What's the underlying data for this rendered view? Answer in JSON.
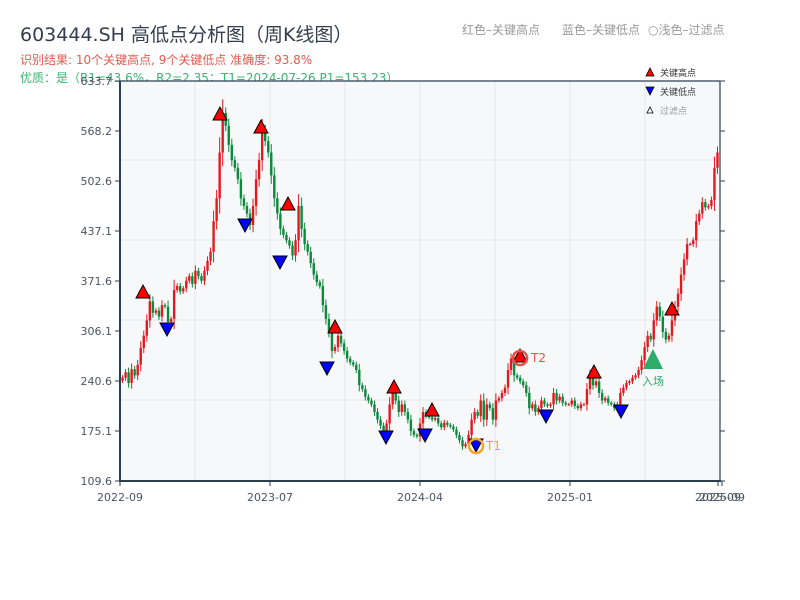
{
  "header": {
    "title": "603444.SH 高低点分析图（周K线图）",
    "result_line": "识别结果: 10个关键高点, 9个关键低点   准确度: 93.8%",
    "quality_line": "优质：是（R1=43.6%，R2=2.35；T1=2024-07-26 P1=153.23）",
    "top_legend": [
      "红色–关键高点",
      "蓝色–关键低点",
      "○浅色–过滤点"
    ]
  },
  "legend": {
    "items": [
      {
        "label": "关键高点",
        "marker": "triangle-up",
        "color": "#ff0000"
      },
      {
        "label": "关键低点",
        "marker": "triangle-down",
        "color": "#0000ff"
      },
      {
        "label": "过滤点",
        "marker": "triangle-up-outline",
        "color": "#ffcccc"
      }
    ]
  },
  "colors": {
    "up": "#e31a1c",
    "down": "#0a8a3a",
    "high_marker": "#ff0000",
    "low_marker": "#0000ff",
    "t1": "#f5a623",
    "t2": "#e8524a",
    "entry": "#2eaa6a",
    "axis": "#2c3e50",
    "grid": "#e3e6ea",
    "plot_bg": "#f7f8fa"
  },
  "annotations": {
    "t1_label": "T1",
    "t2_label": "T2",
    "entry_label": "入场"
  },
  "chart_data": {
    "type": "candlestick",
    "title": "603444.SH 高低点分析图（周K线图）",
    "xlabel": "",
    "ylabel": "",
    "ylim": [
      109.6,
      633.7
    ],
    "yticks": [
      "109.6",
      "175.1",
      "240.6",
      "306.1",
      "371.6",
      "437.1",
      "502.6",
      "568.2",
      "633.7"
    ],
    "xticks": [
      "2022-09",
      "2023-07",
      "2024-04",
      "2025-01",
      "2025-09",
      "2025-09"
    ],
    "grid": true,
    "legend_position": "upper right",
    "key_highs": [
      {
        "approx_date": "2022-11",
        "price": 352
      },
      {
        "approx_date": "2023-03",
        "price": 592
      },
      {
        "approx_date": "2023-05",
        "price": 566
      },
      {
        "approx_date": "2023-08",
        "price": 474
      },
      {
        "approx_date": "2023-11",
        "price": 303
      },
      {
        "approx_date": "2024-02",
        "price": 224
      },
      {
        "approx_date": "2024-05",
        "price": 201
      },
      {
        "approx_date": "2024-10",
        "price": 267
      },
      {
        "approx_date": "2025-03",
        "price": 254
      },
      {
        "approx_date": "2025-06",
        "price": 338
      }
    ],
    "key_lows": [
      {
        "approx_date": "2022-12",
        "price": 305
      },
      {
        "approx_date": "2023-04",
        "price": 448
      },
      {
        "approx_date": "2023-07",
        "price": 396
      },
      {
        "approx_date": "2023-10",
        "price": 256
      },
      {
        "approx_date": "2024-02",
        "price": 163
      },
      {
        "approx_date": "2024-04",
        "price": 165
      },
      {
        "approx_date": "2024-07-26",
        "price": 153.23
      },
      {
        "approx_date": "2024-12",
        "price": 188
      },
      {
        "approx_date": "2025-04",
        "price": 199
      }
    ],
    "T1": {
      "date": "2024-07-26",
      "price": 153.23
    },
    "T2": {
      "approx_date": "2024-10",
      "price": 267
    },
    "entry": {
      "approx_date": "2025-05",
      "price": 262
    },
    "weekly_close_approx": [
      245,
      252,
      238,
      256,
      248,
      262,
      284,
      300,
      320,
      345,
      330,
      333,
      325,
      340,
      338,
      318,
      322,
      360,
      365,
      358,
      362,
      372,
      378,
      368,
      385,
      378,
      372,
      385,
      398,
      410,
      450,
      480,
      540,
      592,
      575,
      550,
      530,
      520,
      505,
      480,
      470,
      460,
      445,
      470,
      505,
      530,
      570,
      555,
      540,
      510,
      480,
      460,
      440,
      432,
      425,
      418,
      405,
      425,
      470,
      440,
      420,
      410,
      395,
      380,
      370,
      365,
      340,
      322,
      305,
      280,
      285,
      300,
      290,
      280,
      270,
      265,
      262,
      255,
      235,
      230,
      220,
      215,
      210,
      200,
      190,
      182,
      175,
      185,
      210,
      225,
      215,
      200,
      210,
      200,
      190,
      175,
      170,
      168,
      185,
      200,
      195,
      193,
      190,
      192,
      185,
      180,
      186,
      183,
      181,
      177,
      170,
      163,
      155,
      158,
      170,
      190,
      200,
      195,
      215,
      190,
      210,
      205,
      190,
      215,
      218,
      225,
      232,
      255,
      270,
      248,
      245,
      240,
      235,
      225,
      205,
      210,
      200,
      205,
      215,
      210,
      208,
      210,
      225,
      215,
      220,
      212,
      210,
      210,
      215,
      208,
      205,
      210,
      210,
      230,
      248,
      235,
      240,
      225,
      215,
      218,
      212,
      210,
      205,
      210,
      225,
      232,
      238,
      240,
      245,
      248,
      255,
      268,
      285,
      300,
      295,
      320,
      338,
      325,
      305,
      295,
      300,
      320,
      338,
      355,
      380,
      400,
      420,
      420,
      425,
      450,
      460,
      475,
      468,
      470,
      478,
      520,
      540
    ]
  }
}
